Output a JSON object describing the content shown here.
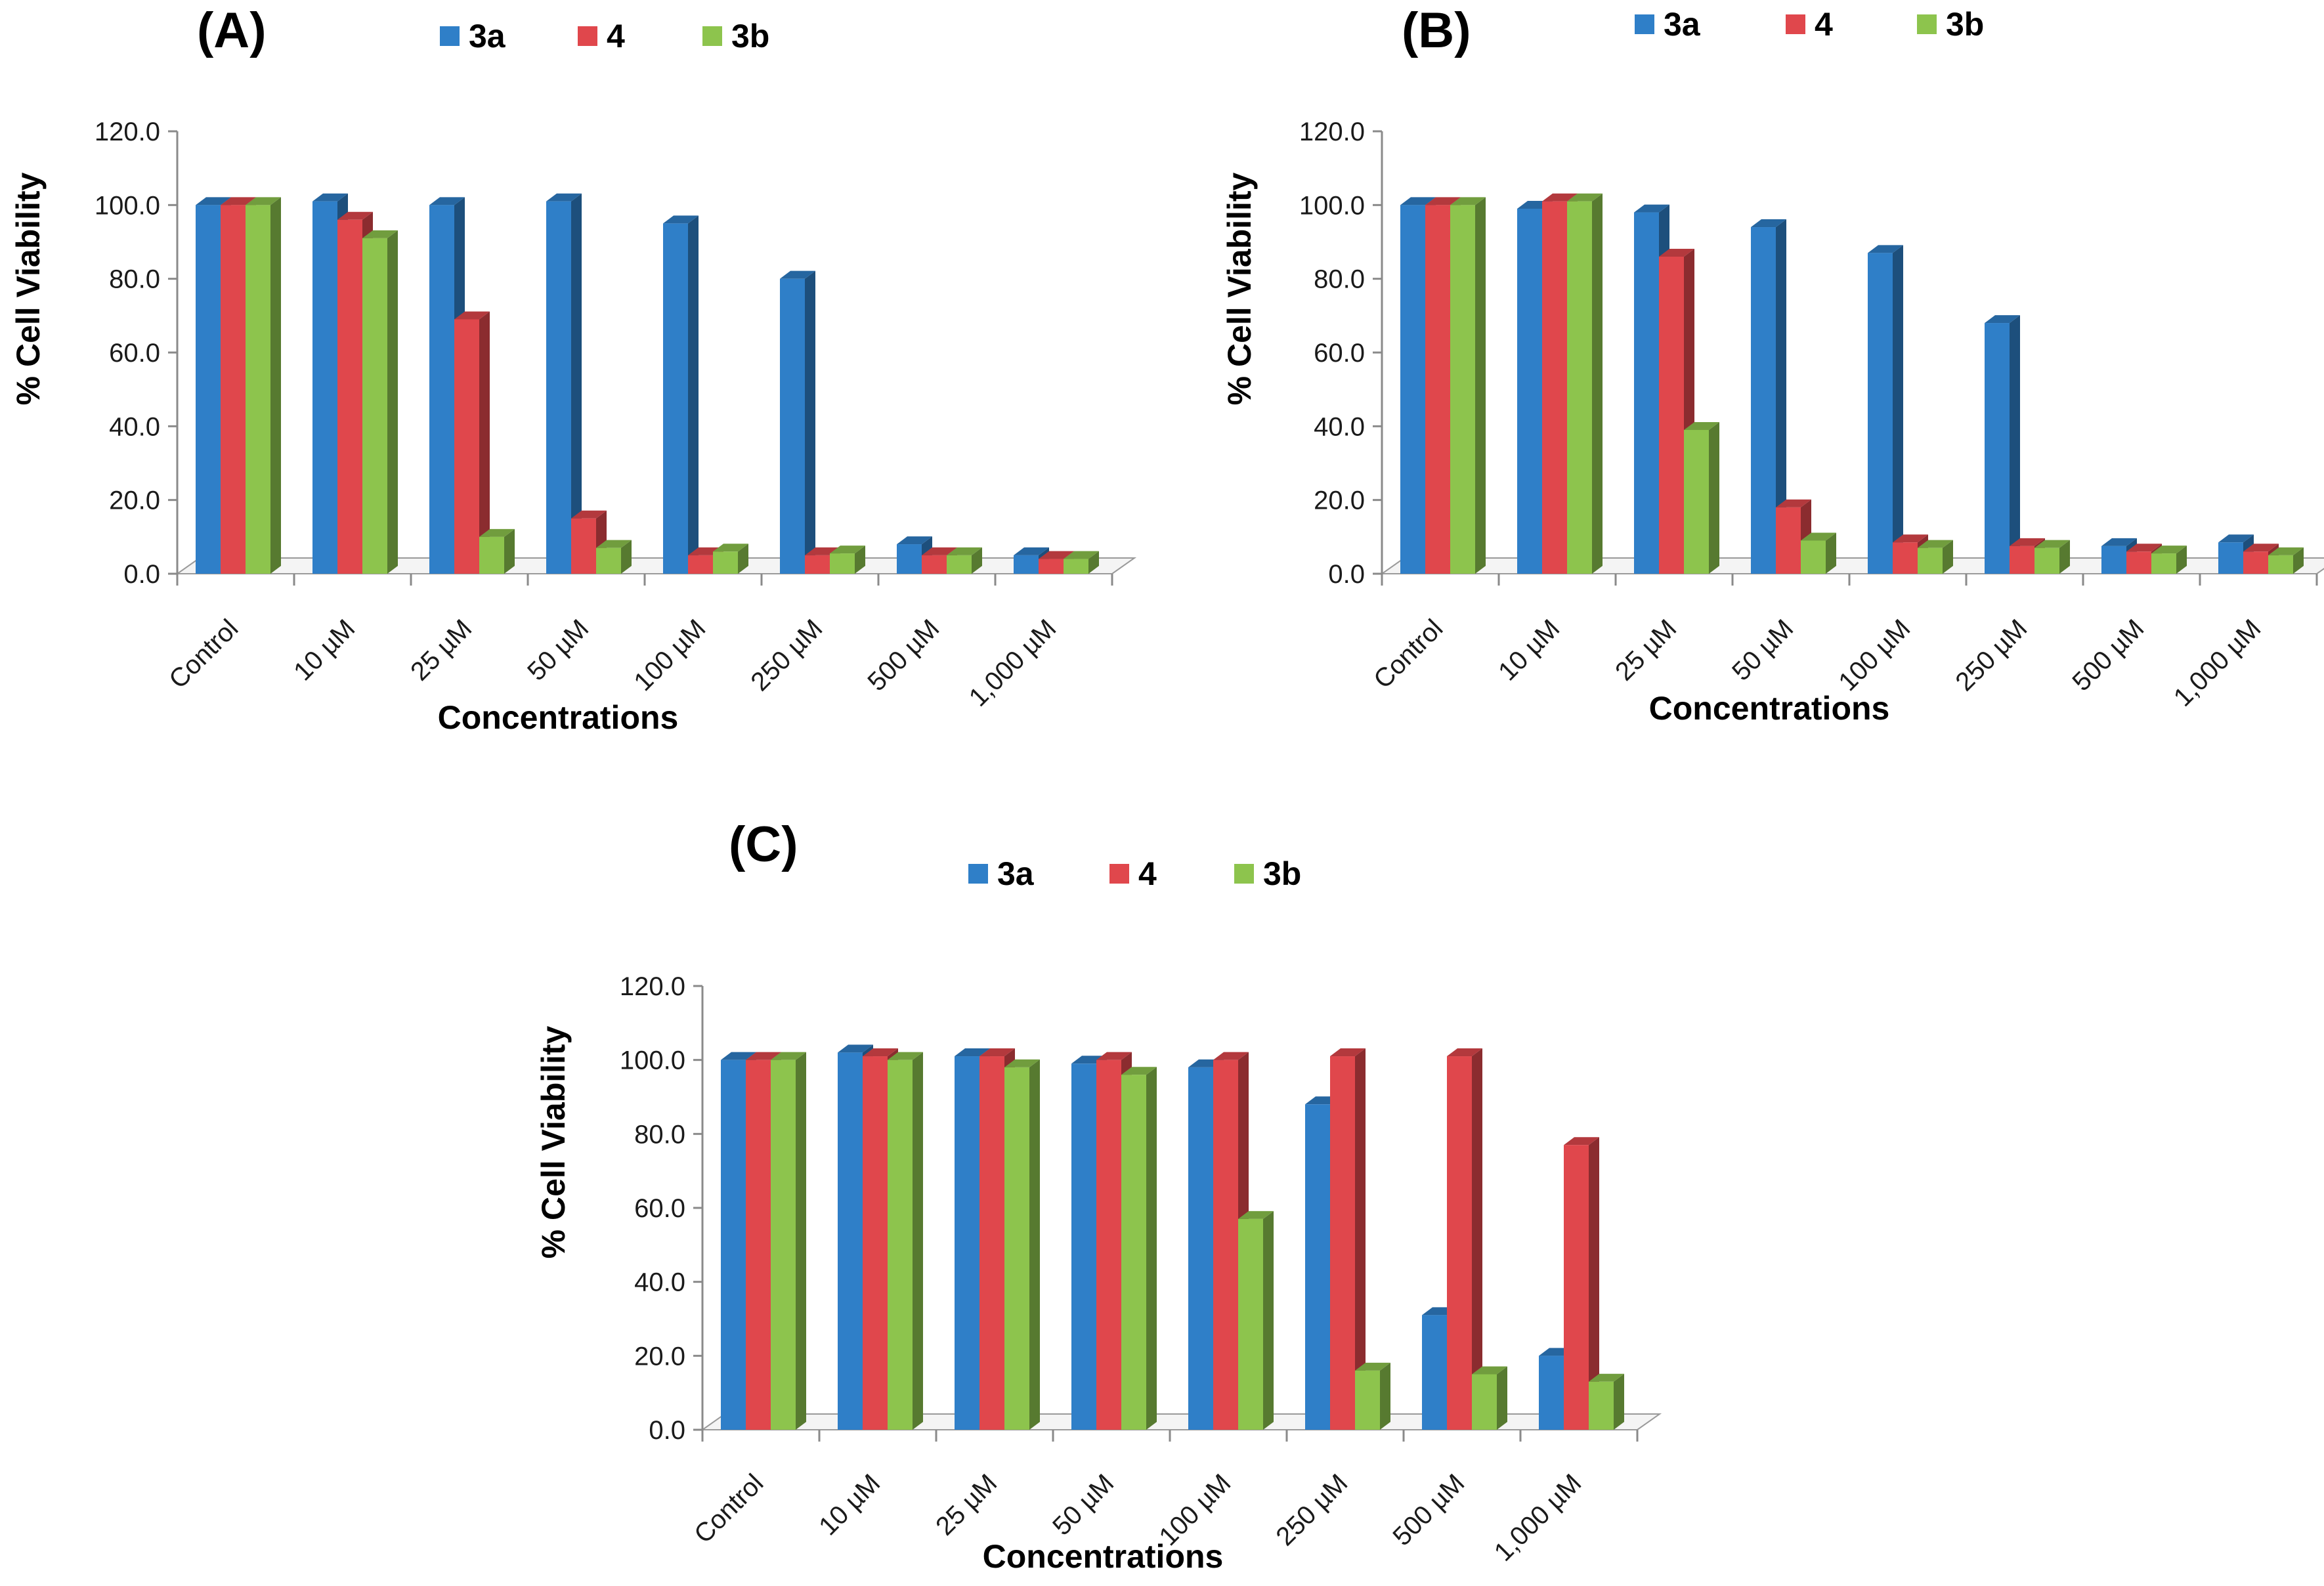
{
  "chart_data": [
    {
      "type": "bar",
      "title": "(A)",
      "xlabel": "Concentrations",
      "ylabel": "% Cell Viability",
      "ylim": [
        0,
        120
      ],
      "yticks": [
        "0.0",
        "20.0",
        "40.0",
        "60.0",
        "80.0",
        "100.0",
        "120.0"
      ],
      "categories": [
        "Control",
        "10 µM",
        "25 µM",
        "50 µM",
        "100 µM",
        "250 µM",
        "500 µM",
        "1,000 µM"
      ],
      "legend_position": "top",
      "series": [
        {
          "name": "3a",
          "color": "#2f7fc8",
          "values": [
            100,
            101,
            100,
            101,
            95,
            80,
            8,
            5
          ]
        },
        {
          "name": "4",
          "color": "#e0474c",
          "values": [
            100,
            96,
            69,
            15,
            5,
            5,
            5,
            4
          ]
        },
        {
          "name": "3b",
          "color": "#8dc44d",
          "values": [
            100,
            91,
            10,
            7,
            6,
            5.5,
            5,
            4
          ]
        }
      ]
    },
    {
      "type": "bar",
      "title": "(B)",
      "xlabel": "Concentrations",
      "ylabel": "% Cell Viability",
      "ylim": [
        0,
        120
      ],
      "yticks": [
        "0.0",
        "20.0",
        "40.0",
        "60.0",
        "80.0",
        "100.0",
        "120.0"
      ],
      "categories": [
        "Control",
        "10 µM",
        "25 µM",
        "50 µM",
        "100 µM",
        "250 µM",
        "500 µM",
        "1,000 µM"
      ],
      "legend_position": "top",
      "series": [
        {
          "name": "3a",
          "color": "#2f7fc8",
          "values": [
            100,
            99,
            98,
            94,
            87,
            68,
            7.5,
            8.5
          ]
        },
        {
          "name": "4",
          "color": "#e0474c",
          "values": [
            100,
            101,
            86,
            18,
            8.5,
            7.5,
            6,
            6
          ]
        },
        {
          "name": "3b",
          "color": "#8dc44d",
          "values": [
            100,
            101,
            39,
            9,
            7,
            7,
            5.5,
            5
          ]
        }
      ]
    },
    {
      "type": "bar",
      "title": "(C)",
      "xlabel": "Concentrations",
      "ylabel": "% Cell Viability",
      "ylim": [
        0,
        120
      ],
      "yticks": [
        "0.0",
        "20.0",
        "40.0",
        "60.0",
        "80.0",
        "100.0",
        "120.0"
      ],
      "categories": [
        "Control",
        "10 µM",
        "25 µM",
        "50 µM",
        "100 µM",
        "250 µM",
        "500 µM",
        "1,000 µM"
      ],
      "legend_position": "top",
      "series": [
        {
          "name": "3a",
          "color": "#2f7fc8",
          "values": [
            100,
            102,
            101,
            99,
            98,
            88,
            31,
            20
          ]
        },
        {
          "name": "4",
          "color": "#e0474c",
          "values": [
            100,
            101,
            101,
            100,
            100,
            101,
            101,
            77
          ]
        },
        {
          "name": "3b",
          "color": "#8dc44d",
          "values": [
            100,
            100,
            98,
            96,
            57,
            16,
            15,
            13
          ]
        }
      ]
    }
  ]
}
